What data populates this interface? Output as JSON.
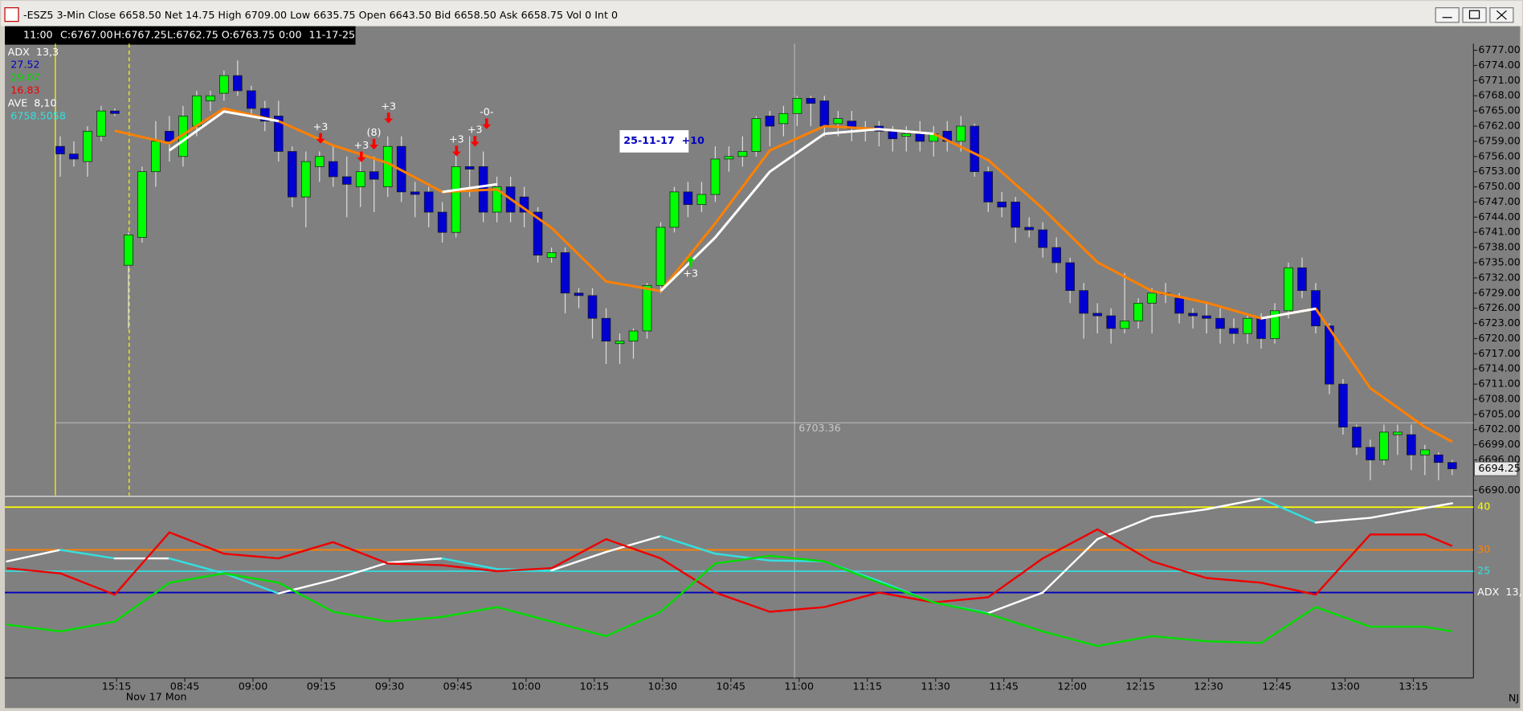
{
  "window_title": "-ESZ5 3-Min Close 6658.50 Net 14.75 High 6709.00 Low 6635.75 Open 6643.50 Bid 6658.50 Ask 6658.75 Vol 0 Int 0",
  "info_bar": [
    "11:00",
    "C:6767.00",
    "H:6767.25",
    "L:6762.75",
    "O:6763.75",
    "0:00",
    "11-17-25"
  ],
  "indicator_legend": [
    {
      "text": "ADX  13,3",
      "color": "#ffffff"
    },
    {
      "text": "27.52",
      "color": "#0000c0"
    },
    {
      "text": "29.07",
      "color": "#00dd00"
    },
    {
      "text": "16.83",
      "color": "#ee0000"
    },
    {
      "text": "AVE  8,10",
      "color": "#ffffff"
    },
    {
      "text": "6758.5058",
      "color": "#33e0e0"
    }
  ],
  "corner_label": "NJ",
  "chart_data": [
    {
      "type": "candlestick",
      "up_color": "#00ff00",
      "down_color": "#0000d0",
      "ylim": [
        6689,
        6778.3
      ],
      "yticks": [
        {
          "value": 6777,
          "label": "6777.00"
        },
        {
          "value": 6774,
          "label": "6774.00"
        },
        {
          "value": 6771,
          "label": "6771.00"
        },
        {
          "value": 6768,
          "label": "6768.00"
        },
        {
          "value": 6765,
          "label": "6765.00"
        },
        {
          "value": 6762,
          "label": "6762.00"
        },
        {
          "value": 6759,
          "label": "6759.00"
        },
        {
          "value": 6756,
          "label": "6756.00"
        },
        {
          "value": 6753,
          "label": "6753.00"
        },
        {
          "value": 6750,
          "label": "6750.00"
        },
        {
          "value": 6747,
          "label": "6747.00"
        },
        {
          "value": 6744,
          "label": "6744.00"
        },
        {
          "value": 6741,
          "label": "6741.00"
        },
        {
          "value": 6738,
          "label": "6738.00"
        },
        {
          "value": 6735,
          "label": "6735.00"
        },
        {
          "value": 6732,
          "label": "6732.00"
        },
        {
          "value": 6729,
          "label": "6729.00"
        },
        {
          "value": 6726,
          "label": "6726.00"
        },
        {
          "value": 6723,
          "label": "6723.00"
        },
        {
          "value": 6720,
          "label": "6720.00"
        },
        {
          "value": 6717,
          "label": "6717.00"
        },
        {
          "value": 6714,
          "label": "6714.00"
        },
        {
          "value": 6711,
          "label": "6711.00"
        },
        {
          "value": 6708,
          "label": "6708.00"
        },
        {
          "value": 6705,
          "label": "6705.00"
        },
        {
          "value": 6702,
          "label": "6702.00"
        },
        {
          "value": 6699,
          "label": "6699.00"
        },
        {
          "value": 6696,
          "label": "6696.00"
        },
        {
          "value": 6690,
          "label": "6690.00"
        }
      ],
      "time_labels": [
        "15:15",
        "08:45",
        "09:00",
        "09:15",
        "09:30",
        "09:45",
        "10:00",
        "10:15",
        "10:30",
        "10:45",
        "11:00",
        "11:15",
        "11:30",
        "11:45",
        "12:00",
        "12:15",
        "12:30",
        "12:45",
        "13:00",
        "13:15"
      ],
      "date_label": "Nov 17 Mon",
      "last_price": 6694.25,
      "crosshair_price": 6703.36,
      "label_box": "25-11-17  +10",
      "annotations": [
        {
          "text": "+3",
          "color": "#ff0000"
        },
        {
          "text": "+3",
          "color": "#ff0000"
        },
        {
          "text": "(8)",
          "color": "#ff0000"
        },
        {
          "text": "+3",
          "color": "#ff0000"
        },
        {
          "text": "+3",
          "color": "#ff0000"
        },
        {
          "text": "+3",
          "color": "#ff0000"
        },
        {
          "text": "-0-",
          "color": "#ff0000"
        },
        {
          "text": "+3",
          "color": "#00dd00"
        }
      ],
      "candles": [
        [
          6758,
          6760,
          6752,
          6756.5
        ],
        [
          6756.5,
          6759,
          6754,
          6755.5
        ],
        [
          6755,
          6762,
          6752,
          6761
        ],
        [
          6760,
          6766,
          6759,
          6765
        ],
        [
          6765,
          6765.5,
          6764,
          6764.5
        ],
        [
          6734.5,
          6741,
          6722,
          6740.5
        ],
        [
          6740,
          6754,
          6739,
          6753
        ],
        [
          6753,
          6763,
          6750,
          6759
        ],
        [
          6761,
          6764,
          6755,
          6759
        ],
        [
          6756,
          6766,
          6754,
          6764
        ],
        [
          6762,
          6769,
          6760,
          6768
        ],
        [
          6767,
          6769,
          6765,
          6768
        ],
        [
          6768.5,
          6773,
          6767,
          6772
        ],
        [
          6772,
          6775,
          6768,
          6769
        ],
        [
          6769,
          6770,
          6764,
          6765.5
        ],
        [
          6765.5,
          6767,
          6761,
          6763
        ],
        [
          6764,
          6767,
          6755,
          6757
        ],
        [
          6757,
          6758,
          6746,
          6748
        ],
        [
          6748,
          6757,
          6742,
          6755
        ],
        [
          6754,
          6757,
          6751,
          6756
        ],
        [
          6755,
          6758,
          6750,
          6752
        ],
        [
          6752,
          6756,
          6744,
          6750.5
        ],
        [
          6750,
          6755,
          6746,
          6753
        ],
        [
          6753,
          6756,
          6745,
          6751.5
        ],
        [
          6750,
          6760,
          6748,
          6758
        ],
        [
          6758,
          6760,
          6747,
          6749
        ],
        [
          6749,
          6751,
          6744,
          6748.5
        ],
        [
          6749,
          6750,
          6742,
          6745
        ],
        [
          6745,
          6747,
          6739,
          6741
        ],
        [
          6741,
          6757,
          6740,
          6754
        ],
        [
          6754,
          6760,
          6748,
          6753.5
        ],
        [
          6754,
          6757,
          6743,
          6745
        ],
        [
          6745,
          6752,
          6743,
          6750
        ],
        [
          6750,
          6752,
          6743,
          6745
        ],
        [
          6748,
          6750,
          6742,
          6745
        ],
        [
          6745,
          6746,
          6735,
          6736.5
        ],
        [
          6736,
          6738,
          6735,
          6737
        ],
        [
          6737,
          6738,
          6725,
          6729
        ],
        [
          6729,
          6730,
          6726,
          6728.5
        ],
        [
          6728.5,
          6730,
          6720,
          6724
        ],
        [
          6724,
          6726,
          6715,
          6719.5
        ],
        [
          6719,
          6721,
          6715,
          6719.5
        ],
        [
          6719.5,
          6722,
          6716,
          6721.5
        ],
        [
          6721.5,
          6731,
          6720,
          6730.5
        ],
        [
          6730.5,
          6743,
          6729,
          6742
        ],
        [
          6742,
          6750,
          6741,
          6749
        ],
        [
          6749,
          6751,
          6744,
          6746.5
        ],
        [
          6746.5,
          6751,
          6745,
          6748.5
        ],
        [
          6748.5,
          6758,
          6747,
          6755.5
        ],
        [
          6755.5,
          6758,
          6753,
          6756
        ],
        [
          6756,
          6760,
          6754,
          6757
        ],
        [
          6757,
          6764,
          6756,
          6763.5
        ],
        [
          6764,
          6765,
          6758,
          6762
        ],
        [
          6762.5,
          6766,
          6760,
          6764.5
        ],
        [
          6764.5,
          6768,
          6762,
          6767.5
        ],
        [
          6767.5,
          6768,
          6762,
          6766.5
        ],
        [
          6767,
          6768,
          6760,
          6762
        ],
        [
          6762.5,
          6765,
          6760,
          6763.5
        ],
        [
          6763,
          6765,
          6759,
          6761.5
        ],
        [
          6761.5,
          6763,
          6759,
          6761
        ],
        [
          6762,
          6763,
          6758,
          6761
        ],
        [
          6761,
          6762,
          6757,
          6759.5
        ],
        [
          6760,
          6762,
          6757,
          6760.5
        ],
        [
          6760.5,
          6763,
          6757,
          6759
        ],
        [
          6759,
          6762,
          6756,
          6760.5
        ],
        [
          6761,
          6763,
          6757,
          6759
        ],
        [
          6759,
          6764,
          6757,
          6762
        ],
        [
          6762,
          6762.5,
          6752,
          6753
        ],
        [
          6753,
          6754,
          6745,
          6747
        ],
        [
          6747,
          6749,
          6744,
          6746
        ],
        [
          6747,
          6748,
          6739,
          6742
        ],
        [
          6742,
          6744,
          6740,
          6741.5
        ],
        [
          6741.5,
          6743,
          6736,
          6738
        ],
        [
          6738,
          6740,
          6733,
          6735
        ],
        [
          6735,
          6736,
          6727,
          6729.5
        ],
        [
          6729.5,
          6731,
          6720,
          6725
        ],
        [
          6725,
          6727,
          6721,
          6724.5
        ],
        [
          6724.5,
          6726,
          6719,
          6722
        ],
        [
          6722,
          6733,
          6721,
          6723.5
        ],
        [
          6723.5,
          6728,
          6722,
          6727
        ],
        [
          6727,
          6730,
          6721,
          6729
        ],
        [
          6729,
          6731,
          6727,
          6729
        ],
        [
          6728,
          6729,
          6723,
          6725
        ],
        [
          6725,
          6726,
          6722,
          6724.5
        ],
        [
          6724.5,
          6727,
          6721,
          6724
        ],
        [
          6724,
          6726,
          6719,
          6722
        ],
        [
          6722,
          6724,
          6719,
          6721
        ],
        [
          6721,
          6725,
          6719,
          6724
        ],
        [
          6724,
          6725,
          6718,
          6720
        ],
        [
          6720,
          6727,
          6719,
          6725.5
        ],
        [
          6725.5,
          6735,
          6724,
          6734
        ],
        [
          6734,
          6736,
          6728,
          6729.5
        ],
        [
          6729.5,
          6731,
          6721,
          6722.5
        ],
        [
          6722.5,
          6723,
          6709,
          6711
        ],
        [
          6711,
          6712,
          6701,
          6702.5
        ],
        [
          6702.5,
          6703,
          6697,
          6698.5
        ],
        [
          6698.5,
          6700,
          6692,
          6696
        ],
        [
          6696,
          6703,
          6695,
          6701.5
        ],
        [
          6701,
          6703,
          6697,
          6701.5
        ],
        [
          6701,
          6703,
          6694,
          6697
        ],
        [
          6697,
          6699,
          6693,
          6698
        ],
        [
          6697,
          6697.5,
          6692,
          6695.5
        ],
        [
          6695.5,
          6696,
          6693,
          6694.25
        ]
      ],
      "x": [
        -4,
        0,
        4,
        8,
        12,
        16,
        20,
        24,
        28,
        32,
        36,
        40,
        44,
        48,
        52,
        56,
        60,
        64,
        68,
        72,
        76,
        80,
        84,
        88,
        92,
        96,
        100,
        102
      ],
      "series": [
        {
          "name": "AVE 10",
          "color": "#ff8000",
          "values": [
            null,
            null,
            6761.1,
            6758.6,
            6765.5,
            6763.0,
            6758.2,
            6754.7,
            6749.0,
            6749.5,
            6741.9,
            6731.3,
            6729.4,
            6742.8,
            6757.2,
            6762.0,
            6761.4,
            6760.5,
            6755.3,
            6745.7,
            6735.1,
            6729.4,
            6727.1,
            6724.0,
            6725.9,
            6710.2,
            6702.5,
            6699.6
          ]
        },
        {
          "name": "AVE 8",
          "color": "#ffffff",
          "values": [
            null,
            null,
            null,
            6757.2,
            6764.9,
            6763.0,
            null,
            null,
            6749.0,
            6750.5,
            null,
            null,
            6729.4,
            6740.0,
            6753.0,
            6760.5,
            6761.4,
            6760.5,
            null,
            null,
            null,
            null,
            null,
            6724.0,
            6725.9,
            null,
            null,
            null
          ]
        }
      ]
    },
    {
      "type": "line",
      "ylim": [
        0,
        42.3
      ],
      "yticks": [
        40,
        30,
        25,
        {
          "value": 20,
          "label": "ADX  13,"
        }
      ],
      "ytick_colors": [
        "#ffff00",
        "#ff8000",
        "#33e0e0",
        "#0000c0"
      ],
      "ytick_label_colors": [
        "#ffff00",
        "#ff8000",
        "#33e0e0",
        "#ffffff"
      ],
      "x": [
        -4,
        0,
        4,
        8,
        12,
        16,
        20,
        24,
        28,
        32,
        36,
        40,
        44,
        48,
        52,
        56,
        60,
        64,
        68,
        72,
        76,
        80,
        84,
        88,
        92,
        96,
        100,
        102
      ],
      "series": [
        {
          "name": "ADX",
          "color": "#ffffff",
          "color_falling": "#33e0e0",
          "values": [
            27.3,
            30.0,
            28.0,
            28.0,
            24.5,
            19.8,
            23.0,
            27.0,
            28.0,
            25.5,
            25.2,
            29.5,
            33.2,
            29.1,
            27.5,
            27.3,
            22.7,
            17.7,
            15.2,
            20.0,
            32.5,
            37.7,
            39.5,
            42.0,
            36.4,
            37.5,
            39.8,
            40.9
          ]
        },
        {
          "name": "-DI",
          "color": "#ee0000",
          "values": [
            25.7,
            24.5,
            19.5,
            34.1,
            29.1,
            28.0,
            31.8,
            26.8,
            26.4,
            25.0,
            25.7,
            32.5,
            28.0,
            20.0,
            15.5,
            16.6,
            20.0,
            17.7,
            18.9,
            28.0,
            34.8,
            27.3,
            23.4,
            22.3,
            19.5,
            33.6,
            33.6,
            30.9
          ]
        },
        {
          "name": "+DI",
          "color": "#00dd00",
          "values": [
            12.5,
            10.9,
            13.2,
            22.3,
            24.5,
            22.3,
            15.5,
            13.2,
            14.3,
            16.6,
            13.2,
            9.8,
            15.5,
            26.8,
            28.6,
            27.3,
            22.3,
            17.7,
            15.0,
            10.9,
            7.5,
            9.8,
            8.6,
            8.2,
            16.6,
            12.0,
            12.0,
            10.9
          ]
        }
      ]
    }
  ]
}
